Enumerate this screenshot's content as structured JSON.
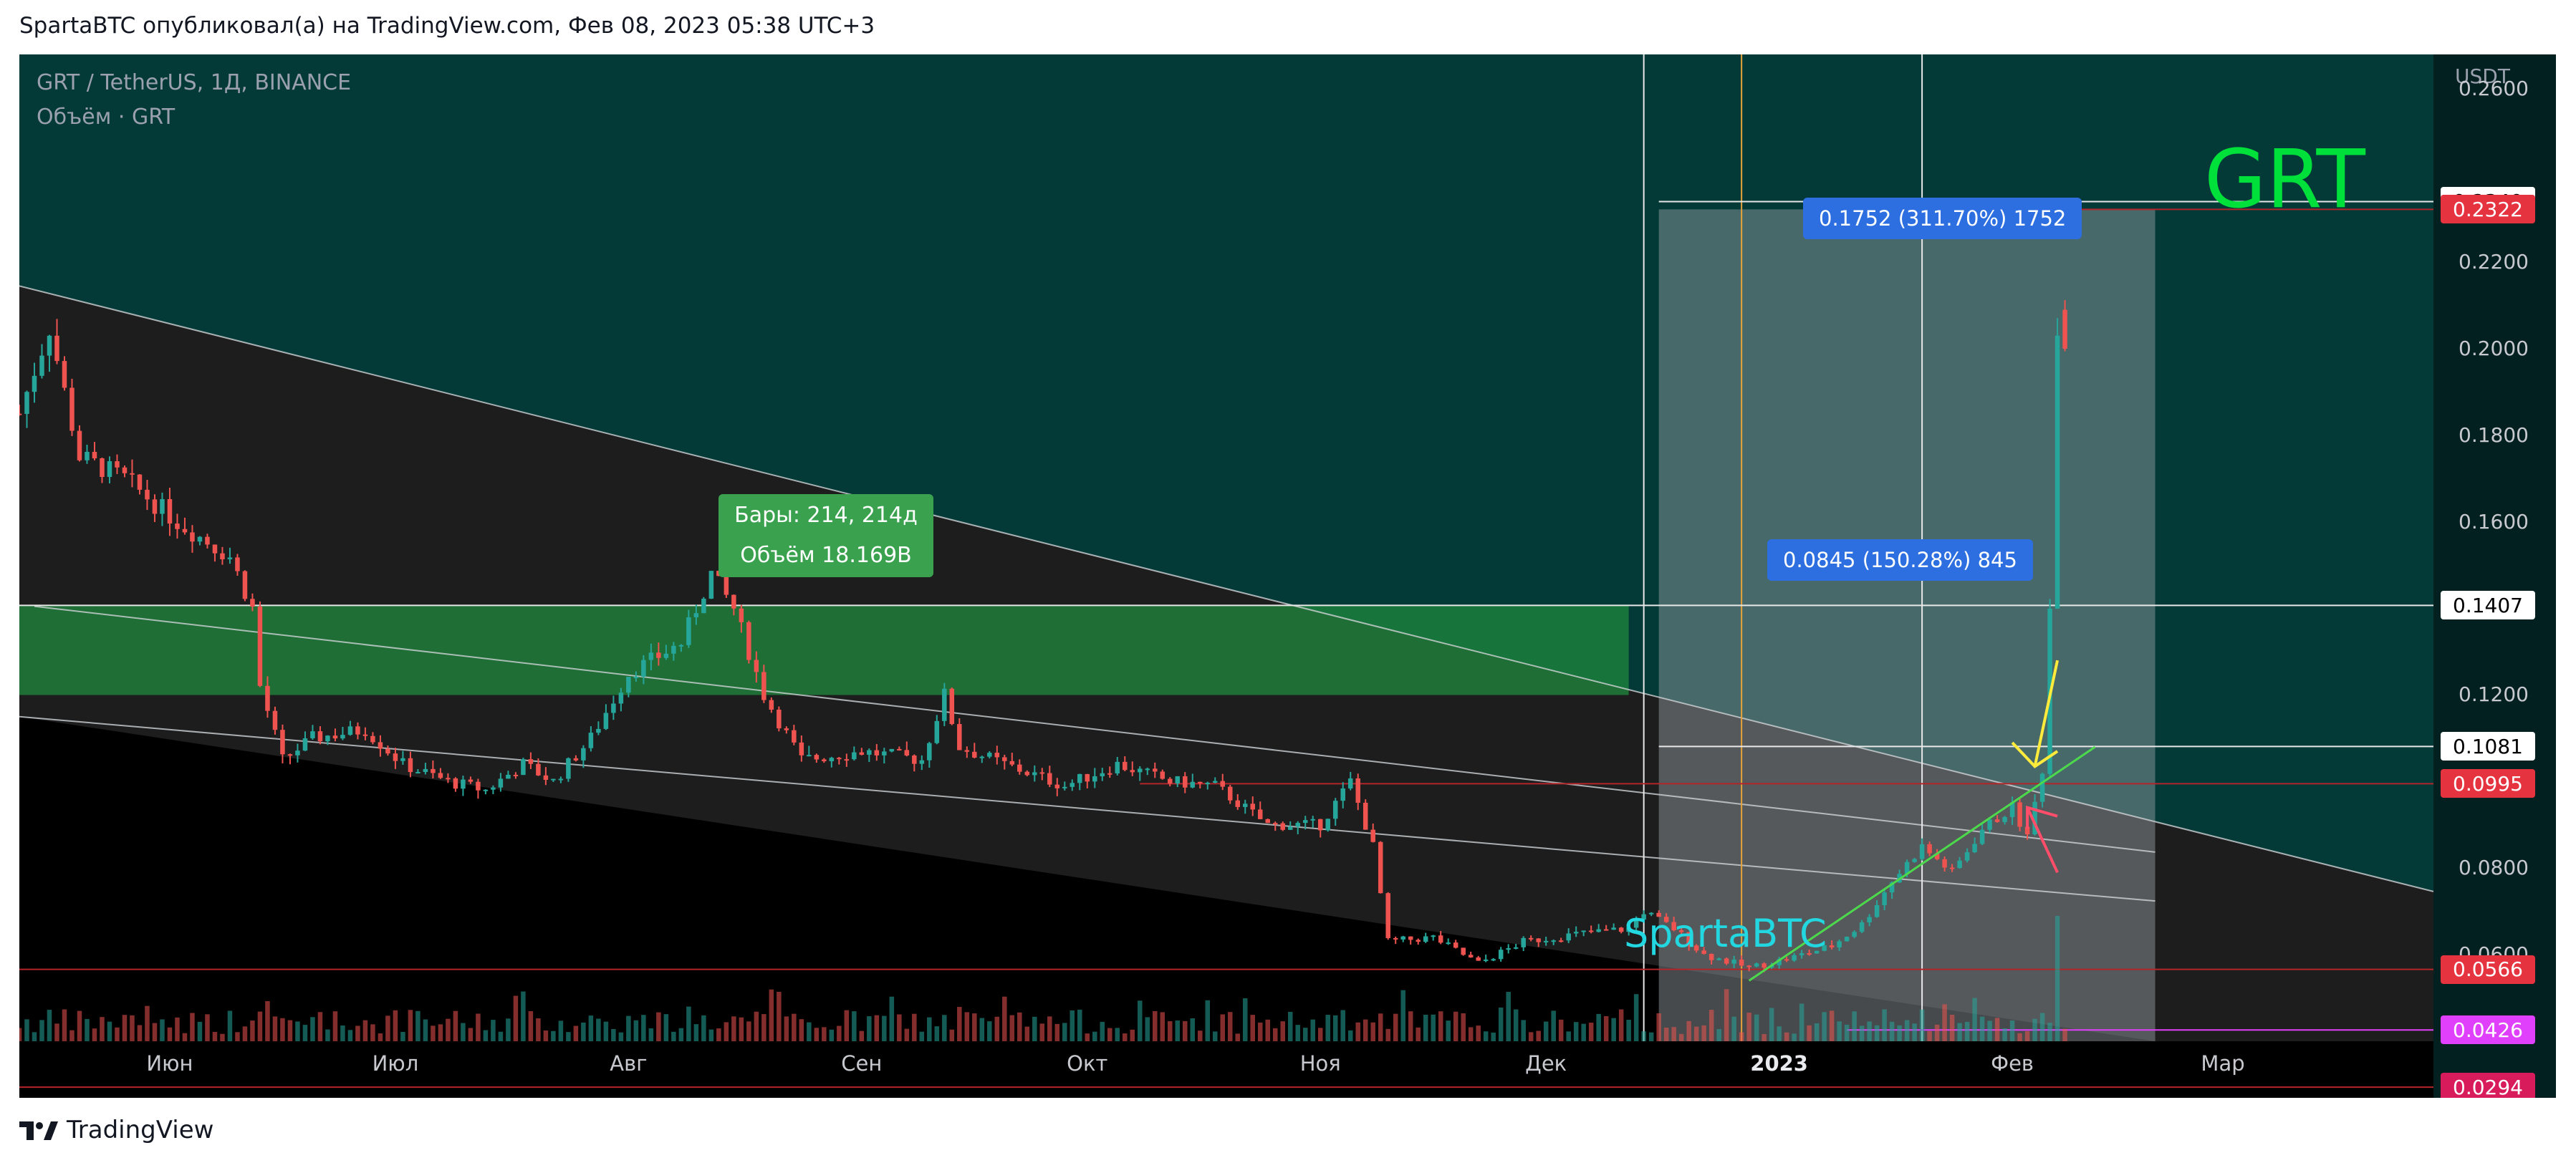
{
  "header": "SpartaBTC опубликовал(а) на TradingView.com, Фев 08, 2023 05:38 UTC+3",
  "footer": {
    "brand": "TradingView",
    "logo_icon": "tradingview-logo-icon"
  },
  "legend": {
    "symbol": "GRT / TetherUS, 1Д, BINANCE",
    "volume": "Объём · GRT"
  },
  "annotations": {
    "big_label": "GRT",
    "watermark": "SpartaBTC",
    "bars_box": {
      "line1": "Бары: 214, 214д",
      "line2": "Объём 18.169B"
    },
    "measure_top": "0.1752 (311.70%) 1752",
    "measure_mid": "0.0845 (150.28%) 845"
  },
  "colors": {
    "upper_bg": "#033a38",
    "lower_bg": "#000000",
    "candle_up": "#26a69a",
    "candle_down": "#ef5350",
    "green_zone": "#1f8a3e",
    "measure_box": "#9ca3a8",
    "hline_red": "#b2252b",
    "magenta": "#e040fb",
    "arrow_yellow": "#ffeb3b",
    "arrow_red": "#ff4d6a",
    "vline_orange": "#e8a33a"
  },
  "chart_data": {
    "type": "candlestick",
    "symbol": "GRT / TetherUS",
    "interval": "1Д",
    "exchange": "BINANCE",
    "y_unit": "USDT",
    "y_scale": "linear",
    "ylim": [
      0.04,
      0.268
    ],
    "y_ticks": [
      "0.2600",
      "0.2200",
      "0.2000",
      "0.1800",
      "0.1600",
      "0.1200",
      "0.0800",
      "0.0600"
    ],
    "x_ticks": [
      {
        "label": "Июн",
        "date": "2022-06-01",
        "bold": false
      },
      {
        "label": "Июл",
        "date": "2022-07-01",
        "bold": false
      },
      {
        "label": "Авг",
        "date": "2022-08-01",
        "bold": false
      },
      {
        "label": "Сен",
        "date": "2022-09-01",
        "bold": false
      },
      {
        "label": "Окт",
        "date": "2022-10-01",
        "bold": false
      },
      {
        "label": "Ноя",
        "date": "2022-11-01",
        "bold": false
      },
      {
        "label": "Дек",
        "date": "2022-12-01",
        "bold": false
      },
      {
        "label": "2023",
        "date": "2023-01-01",
        "bold": true
      },
      {
        "label": "Фев",
        "date": "2023-02-01",
        "bold": false
      },
      {
        "label": "Мар",
        "date": "2023-03-01",
        "bold": false
      }
    ],
    "xlim": [
      "2022-05-12",
      "2023-03-29"
    ],
    "close_path": [
      [
        "2022-05-12",
        0.185
      ],
      [
        "2022-05-16",
        0.205
      ],
      [
        "2022-05-20",
        0.175
      ],
      [
        "2022-05-26",
        0.17
      ],
      [
        "2022-06-02",
        0.16
      ],
      [
        "2022-06-09",
        0.152
      ],
      [
        "2022-06-12",
        0.14
      ],
      [
        "2022-06-13",
        0.122
      ],
      [
        "2022-06-16",
        0.105
      ],
      [
        "2022-06-20",
        0.11
      ],
      [
        "2022-06-27",
        0.112
      ],
      [
        "2022-07-02",
        0.104
      ],
      [
        "2022-07-08",
        0.1
      ],
      [
        "2022-07-13",
        0.098
      ],
      [
        "2022-07-18",
        0.104
      ],
      [
        "2022-07-22",
        0.1
      ],
      [
        "2022-07-27",
        0.11
      ],
      [
        "2022-08-01",
        0.125
      ],
      [
        "2022-08-08",
        0.132
      ],
      [
        "2022-08-12",
        0.148
      ],
      [
        "2022-08-15",
        0.14
      ],
      [
        "2022-08-19",
        0.12
      ],
      [
        "2022-08-24",
        0.105
      ],
      [
        "2022-09-01",
        0.107
      ],
      [
        "2022-09-09",
        0.105
      ],
      [
        "2022-09-12",
        0.12
      ],
      [
        "2022-09-14",
        0.108
      ],
      [
        "2022-09-20",
        0.104
      ],
      [
        "2022-09-28",
        0.099
      ],
      [
        "2022-10-05",
        0.104
      ],
      [
        "2022-10-12",
        0.1
      ],
      [
        "2022-10-18",
        0.099
      ],
      [
        "2022-10-25",
        0.09
      ],
      [
        "2022-11-01",
        0.09
      ],
      [
        "2022-11-05",
        0.1
      ],
      [
        "2022-11-08",
        0.085
      ],
      [
        "2022-11-10",
        0.063
      ],
      [
        "2022-11-16",
        0.064
      ],
      [
        "2022-11-22",
        0.058
      ],
      [
        "2022-11-28",
        0.063
      ],
      [
        "2022-12-06",
        0.065
      ],
      [
        "2022-12-12",
        0.066
      ],
      [
        "2022-12-14",
        0.07
      ],
      [
        "2022-12-18",
        0.066
      ],
      [
        "2022-12-22",
        0.06
      ],
      [
        "2022-12-28",
        0.057
      ],
      [
        "2023-01-02",
        0.059
      ],
      [
        "2023-01-08",
        0.062
      ],
      [
        "2023-01-12",
        0.067
      ],
      [
        "2023-01-16",
        0.077
      ],
      [
        "2023-01-20",
        0.085
      ],
      [
        "2023-01-24",
        0.079
      ],
      [
        "2023-01-28",
        0.089
      ],
      [
        "2023-02-01",
        0.094
      ],
      [
        "2023-02-03",
        0.087
      ],
      [
        "2023-02-05",
        0.103
      ],
      [
        "2023-02-06",
        0.14
      ],
      [
        "2023-02-07",
        0.206
      ],
      [
        "2023-02-08",
        0.2
      ]
    ],
    "last_candle": {
      "date": "2023-02-08",
      "open": 0.209,
      "high": 0.211,
      "low": 0.199,
      "close": 0.2
    },
    "volume_spike": "2023-02-07",
    "green_zone": {
      "from": "2022-05-12",
      "to": "2022-12-12",
      "top": 0.1407,
      "bottom": 0.12
    },
    "measure_box": {
      "from": "2022-12-16",
      "to": "2023-02-20",
      "top": 0.2322,
      "bottom": 0.0566
    },
    "verticals": [
      {
        "date": "2022-12-14",
        "color": "white"
      },
      {
        "date": "2022-12-27",
        "color": "orange"
      },
      {
        "date": "2023-01-20",
        "color": "white"
      }
    ],
    "hlines": [
      {
        "price": 0.234,
        "from": "2022-12-16",
        "color": "white",
        "tag": "0.2340",
        "tag_bg": "#ffffff",
        "tag_fg": "#000000"
      },
      {
        "price": 0.2322,
        "from": "2023-02-08",
        "color": "red",
        "tag": "0.2322",
        "tag_bg": "#e5333f",
        "tag_fg": "#ffffff"
      },
      {
        "price": 0.1407,
        "from": "2022-05-12",
        "color": "white",
        "tag": "0.1407",
        "tag_bg": "#ffffff",
        "tag_fg": "#000000"
      },
      {
        "price": 0.1081,
        "from": "2022-12-16",
        "color": "white",
        "tag": "0.1081",
        "tag_bg": "#ffffff",
        "tag_fg": "#000000"
      },
      {
        "price": 0.0995,
        "from": "2022-10-08",
        "color": "red",
        "tag": "0.0995",
        "tag_bg": "#e5333f",
        "tag_fg": "#ffffff"
      },
      {
        "price": 0.0566,
        "from": "2022-05-12",
        "color": "red",
        "tag": "0.0566",
        "tag_bg": "#e5333f",
        "tag_fg": "#ffffff"
      },
      {
        "price": 0.0426,
        "from": "2023-01-10",
        "color": "magenta",
        "tag": "0.0426",
        "tag_bg": "#e040fb",
        "tag_fg": "#ffffff"
      },
      {
        "price": 0.0294,
        "from": "2022-05-12",
        "color": "red",
        "tag": "0.0294",
        "tag_bg": "#d81b5a",
        "tag_fg": "#ffffff"
      }
    ],
    "trendlines": [
      {
        "name": "channel-top",
        "from": [
          "2022-05-12",
          0.2145
        ],
        "to": [
          "2023-03-29",
          0.0746
        ]
      },
      {
        "name": "channel-mid",
        "from": [
          "2022-05-14",
          0.1405
        ],
        "to": [
          "2023-02-20",
          0.0837
        ]
      },
      {
        "name": "channel-bottom",
        "from": [
          "2022-05-12",
          0.115
        ],
        "to": [
          "2023-02-20",
          0.0724
        ]
      }
    ]
  }
}
